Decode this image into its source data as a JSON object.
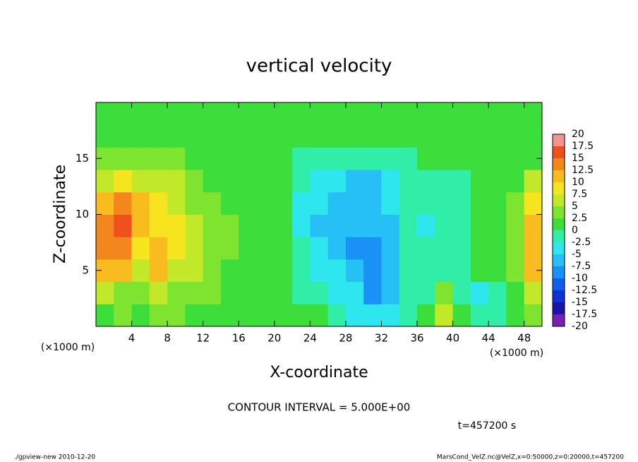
{
  "chart_data": {
    "type": "heatmap",
    "title": "vertical velocity",
    "x_label": "X-coordinate",
    "y_label": "Z-coordinate",
    "x_unit": "(×1000 m)",
    "x_unit_right": "(×1000 m)",
    "xlim": [
      0,
      50
    ],
    "ylim": [
      0,
      20
    ],
    "xticks": [
      4,
      8,
      12,
      16,
      20,
      24,
      28,
      32,
      36,
      40,
      44,
      48
    ],
    "yticks": [
      5,
      10,
      15
    ],
    "x": [
      1,
      3,
      5,
      7,
      9,
      11,
      13,
      15,
      17,
      19,
      21,
      23,
      25,
      27,
      29,
      31,
      33,
      35,
      37,
      39,
      41,
      43,
      45,
      47,
      49
    ],
    "z": [
      1,
      3,
      5,
      7,
      9,
      11,
      13,
      15,
      17,
      19
    ],
    "values": [
      [
        1,
        3,
        2,
        3,
        2.5,
        2,
        2,
        1.5,
        1,
        0.5,
        0,
        0,
        0,
        -0.5,
        -3,
        -5,
        -4,
        -1,
        0,
        6,
        0,
        -1,
        -1,
        1,
        4
      ],
      [
        5,
        4,
        4,
        5,
        4,
        3.5,
        2.5,
        1.5,
        1,
        0.5,
        0,
        -0.5,
        -1,
        -3,
        -5,
        -8,
        -6,
        -2,
        -0.5,
        4,
        -1,
        -3,
        -1,
        2,
        7
      ],
      [
        10,
        12,
        7,
        10,
        7,
        5,
        3.5,
        2,
        1,
        1,
        0,
        -1.5,
        -3,
        -5,
        -7,
        -9,
        -7,
        -2,
        -1.5,
        -1,
        -0.5,
        0,
        0,
        3,
        10
      ],
      [
        12.5,
        14,
        9,
        11,
        8,
        6,
        4,
        2.5,
        1.5,
        1,
        0,
        -2.5,
        -5,
        -6.5,
        -8,
        -8.5,
        -6,
        -2,
        -2.5,
        -2,
        -1,
        0,
        0,
        4,
        11
      ],
      [
        12.5,
        15,
        11,
        9,
        8.5,
        6,
        4,
        2.5,
        1.5,
        1,
        0,
        -3,
        -5.5,
        -7,
        -7.5,
        -7.5,
        -5.5,
        -2,
        -3,
        -2.5,
        -1,
        0,
        0,
        4,
        10
      ],
      [
        10,
        12.5,
        10,
        8,
        7,
        4.5,
        3,
        2,
        1,
        1,
        0,
        -3,
        -5,
        -6,
        -7,
        -7,
        -5,
        -2,
        -2.5,
        -2,
        -1,
        0,
        0,
        3,
        7.5
      ],
      [
        7,
        7.5,
        7,
        6,
        5,
        3.5,
        2,
        1,
        1,
        0.5,
        0,
        -2.5,
        -4,
        -5,
        -5.5,
        -5.5,
        -4,
        -1.5,
        -0.5,
        -0.5,
        -0.5,
        0,
        0,
        1,
        5
      ],
      [
        4,
        4,
        3.5,
        3,
        2.5,
        1.5,
        1,
        0.5,
        0.5,
        0.5,
        0,
        -1,
        -1.5,
        -2,
        -2,
        -2,
        -1.5,
        -1,
        0,
        0,
        0,
        0,
        0,
        0,
        2
      ],
      [
        2,
        2,
        1.5,
        1.5,
        1,
        1,
        0.5,
        0.5,
        0.5,
        0.5,
        0,
        0,
        0,
        0,
        0,
        0,
        0,
        0,
        0,
        0,
        0,
        0,
        0,
        0,
        1
      ],
      [
        1,
        1,
        1,
        1,
        1,
        1,
        0.5,
        0.5,
        0.5,
        0.5,
        0,
        0,
        0,
        0,
        0,
        0,
        0,
        0,
        0,
        0,
        0,
        0,
        0,
        0,
        0.5
      ]
    ],
    "colorbar": {
      "levels": [
        -20,
        -17.5,
        -15,
        -12.5,
        -10,
        -7.5,
        -5,
        -2.5,
        0,
        2.5,
        5,
        7.5,
        10,
        12.5,
        15,
        17.5,
        20
      ],
      "colors": [
        "#7a1fb0",
        "#1c14a8",
        "#1030d8",
        "#1060f0",
        "#1a92f5",
        "#26c0f6",
        "#2ee6ee",
        "#30eea8",
        "#3cde3c",
        "#7ee430",
        "#c2e82a",
        "#f6e41e",
        "#f8bc1e",
        "#f4861e",
        "#f0501e",
        "#f09494"
      ]
    },
    "contour_interval": "CONTOUR INTERVAL = 5.000E+00",
    "time_label": "t=457200 s",
    "footer_left": "./gpview-new  2010-12-20",
    "footer_right": "MarsCond_VelZ.nc@VelZ,x=0:50000,z=0:20000,t=457200"
  }
}
